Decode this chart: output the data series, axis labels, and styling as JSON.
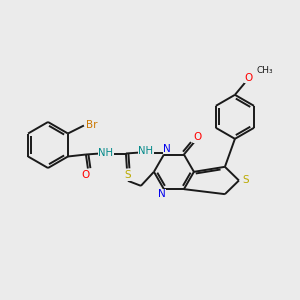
{
  "bg_color": "#ebebeb",
  "bond_color": "#1a1a1a",
  "atom_colors": {
    "Br": "#cc7700",
    "O": "#ff0000",
    "N": "#0000ee",
    "S": "#bbaa00",
    "NH": "#008888",
    "C": "#1a1a1a"
  },
  "lw": 1.4
}
